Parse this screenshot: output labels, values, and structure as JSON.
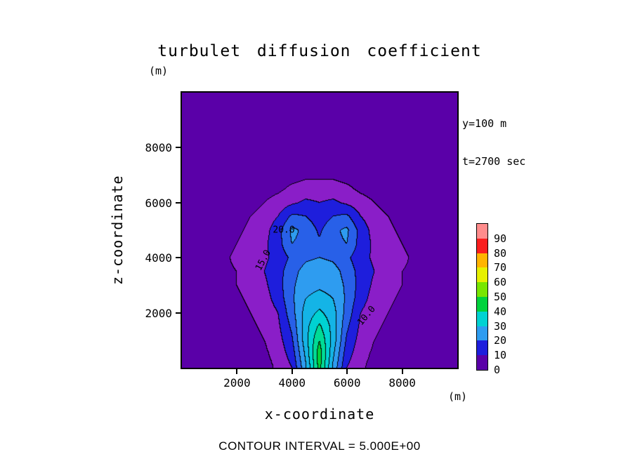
{
  "title": "turbulet diffusion coefficient",
  "annotations": {
    "line1": "y=100 m",
    "line2": "t=2700 sec"
  },
  "axes": {
    "x_label": "x-coordinate",
    "x_unit": "(m)",
    "z_label": "z-coordinate",
    "z_unit": "(m)",
    "x_ticks": [
      2000,
      4000,
      6000,
      8000
    ],
    "z_ticks": [
      2000,
      4000,
      6000,
      8000
    ]
  },
  "caption": "CONTOUR INTERVAL = 5.000E+00",
  "colorbar": {
    "labels": [
      0,
      10,
      20,
      30,
      40,
      50,
      60,
      70,
      80,
      90
    ],
    "colors_bottom_to_top": [
      "#5A00A8",
      "#1E1EDC",
      "#2E9CF0",
      "#00D2D2",
      "#00D23C",
      "#78E600",
      "#E6F000",
      "#FFB400",
      "#FA1E1E",
      "#FF8C8C"
    ]
  },
  "chart_data": {
    "type": "heatmap",
    "subtype": "filled-contour",
    "title": "turbulet diffusion coefficient",
    "xlabel": "x-coordinate (m)",
    "ylabel": "z-coordinate (m)",
    "slice": {
      "y": "100 m",
      "t": "2700 sec"
    },
    "contour_interval": 5.0,
    "x_range": [
      0,
      10000
    ],
    "z_range": [
      0,
      10000
    ],
    "value_range_shown_on_colorbar": [
      0,
      90
    ],
    "grid": {
      "x": [
        0,
        500,
        1000,
        1500,
        2000,
        2500,
        3000,
        3500,
        4000,
        4500,
        5000,
        5500,
        6000,
        6500,
        7000,
        7500,
        8000,
        8500,
        9000,
        9500,
        10000
      ],
      "z": [
        0,
        500,
        1000,
        1500,
        2000,
        2500,
        3000,
        3500,
        4000,
        4500,
        5000,
        5500,
        6000,
        6500,
        7000,
        7500,
        8000,
        8500,
        9000,
        9500,
        10000
      ],
      "values": [
        [
          1,
          1,
          1,
          1,
          1,
          2,
          3,
          6,
          10,
          24,
          42,
          24,
          10,
          6,
          3,
          2,
          1,
          1,
          1,
          1,
          1
        ],
        [
          1,
          1,
          1,
          1,
          2,
          2,
          4,
          7,
          12,
          26,
          43,
          26,
          12,
          7,
          4,
          2,
          2,
          1,
          1,
          1,
          1
        ],
        [
          1,
          1,
          1,
          2,
          2,
          3,
          5,
          8,
          14,
          28,
          40,
          28,
          14,
          8,
          5,
          3,
          2,
          1,
          1,
          1,
          1
        ],
        [
          1,
          1,
          1,
          2,
          3,
          4,
          6,
          9,
          16,
          28,
          36,
          28,
          16,
          9,
          6,
          4,
          3,
          2,
          1,
          1,
          1
        ],
        [
          1,
          1,
          2,
          2,
          3,
          5,
          7,
          10,
          18,
          27,
          31,
          27,
          18,
          10,
          7,
          5,
          3,
          2,
          2,
          1,
          1
        ],
        [
          1,
          1,
          2,
          3,
          4,
          6,
          8,
          12,
          19,
          25,
          27,
          25,
          19,
          12,
          8,
          6,
          4,
          3,
          2,
          1,
          1
        ],
        [
          1,
          1,
          2,
          3,
          5,
          7,
          9,
          13,
          19,
          23,
          24,
          23,
          19,
          13,
          9,
          7,
          5,
          3,
          2,
          1,
          1
        ],
        [
          1,
          2,
          2,
          4,
          5,
          7,
          10,
          13,
          18,
          22,
          23,
          22,
          18,
          13,
          10,
          7,
          5,
          4,
          2,
          2,
          1
        ],
        [
          1,
          2,
          3,
          4,
          6,
          8,
          9,
          12,
          16,
          19,
          20,
          19,
          16,
          12,
          9,
          8,
          6,
          4,
          3,
          2,
          1
        ],
        [
          1,
          1,
          2,
          3,
          5,
          7,
          9,
          13,
          20,
          19,
          16,
          19,
          20,
          13,
          9,
          7,
          5,
          3,
          2,
          1,
          1
        ],
        [
          1,
          1,
          2,
          3,
          4,
          6,
          8,
          13,
          21,
          19,
          14,
          19,
          21,
          13,
          8,
          6,
          4,
          3,
          2,
          1,
          1
        ],
        [
          1,
          1,
          1,
          2,
          3,
          5,
          7,
          10,
          16,
          15,
          12,
          15,
          16,
          10,
          7,
          5,
          3,
          2,
          1,
          1,
          1
        ],
        [
          1,
          1,
          1,
          2,
          2,
          3,
          5,
          7,
          9,
          11,
          10,
          11,
          9,
          7,
          5,
          3,
          2,
          2,
          1,
          1,
          1
        ],
        [
          1,
          1,
          1,
          1,
          2,
          2,
          3,
          4,
          6,
          7,
          7,
          7,
          6,
          4,
          3,
          2,
          2,
          1,
          1,
          1,
          1
        ],
        [
          1,
          1,
          1,
          1,
          1,
          2,
          2,
          3,
          3,
          4,
          4,
          4,
          3,
          3,
          2,
          2,
          1,
          1,
          1,
          1,
          1
        ],
        [
          1,
          1,
          1,
          1,
          1,
          1,
          2,
          2,
          2,
          3,
          3,
          3,
          2,
          2,
          2,
          1,
          1,
          1,
          1,
          1,
          1
        ],
        [
          1,
          1,
          1,
          1,
          1,
          1,
          1,
          1,
          2,
          2,
          2,
          2,
          2,
          1,
          1,
          1,
          1,
          1,
          1,
          1,
          1
        ],
        [
          1,
          1,
          1,
          1,
          1,
          1,
          1,
          1,
          1,
          1,
          1,
          1,
          1,
          1,
          1,
          1,
          1,
          1,
          1,
          1,
          1
        ],
        [
          1,
          1,
          1,
          1,
          1,
          1,
          1,
          1,
          1,
          1,
          1,
          1,
          1,
          1,
          1,
          1,
          1,
          1,
          1,
          1,
          1
        ],
        [
          1,
          1,
          1,
          1,
          1,
          1,
          1,
          1,
          1,
          1,
          1,
          1,
          1,
          1,
          1,
          1,
          1,
          1,
          1,
          1,
          1
        ],
        [
          1,
          1,
          1,
          1,
          1,
          1,
          1,
          1,
          1,
          1,
          1,
          1,
          1,
          1,
          1,
          1,
          1,
          1,
          1,
          1,
          1
        ]
      ]
    },
    "fill_colors_per_5": [
      "#5A00A8",
      "#8A1EC8",
      "#1E1EDC",
      "#2860E8",
      "#2E9CF0",
      "#14B4E6",
      "#00D2D2",
      "#00DC96",
      "#00D23C",
      "#32DC00",
      "#78E600",
      "#B4F000",
      "#E6F000",
      "#F0D200",
      "#FFB400",
      "#FF8C00",
      "#FA4B1E",
      "#F01E1E",
      "#FF8C8C"
    ],
    "contour_line_color": "#000000",
    "contour_labels": [
      {
        "text": "20.0",
        "x": 3700,
        "z": 5000,
        "rotation": 0
      },
      {
        "text": "15.0",
        "x": 2950,
        "z": 3900,
        "rotation": -62
      },
      {
        "text": "10.0",
        "x": 6700,
        "z": 1900,
        "rotation": -50
      }
    ]
  }
}
